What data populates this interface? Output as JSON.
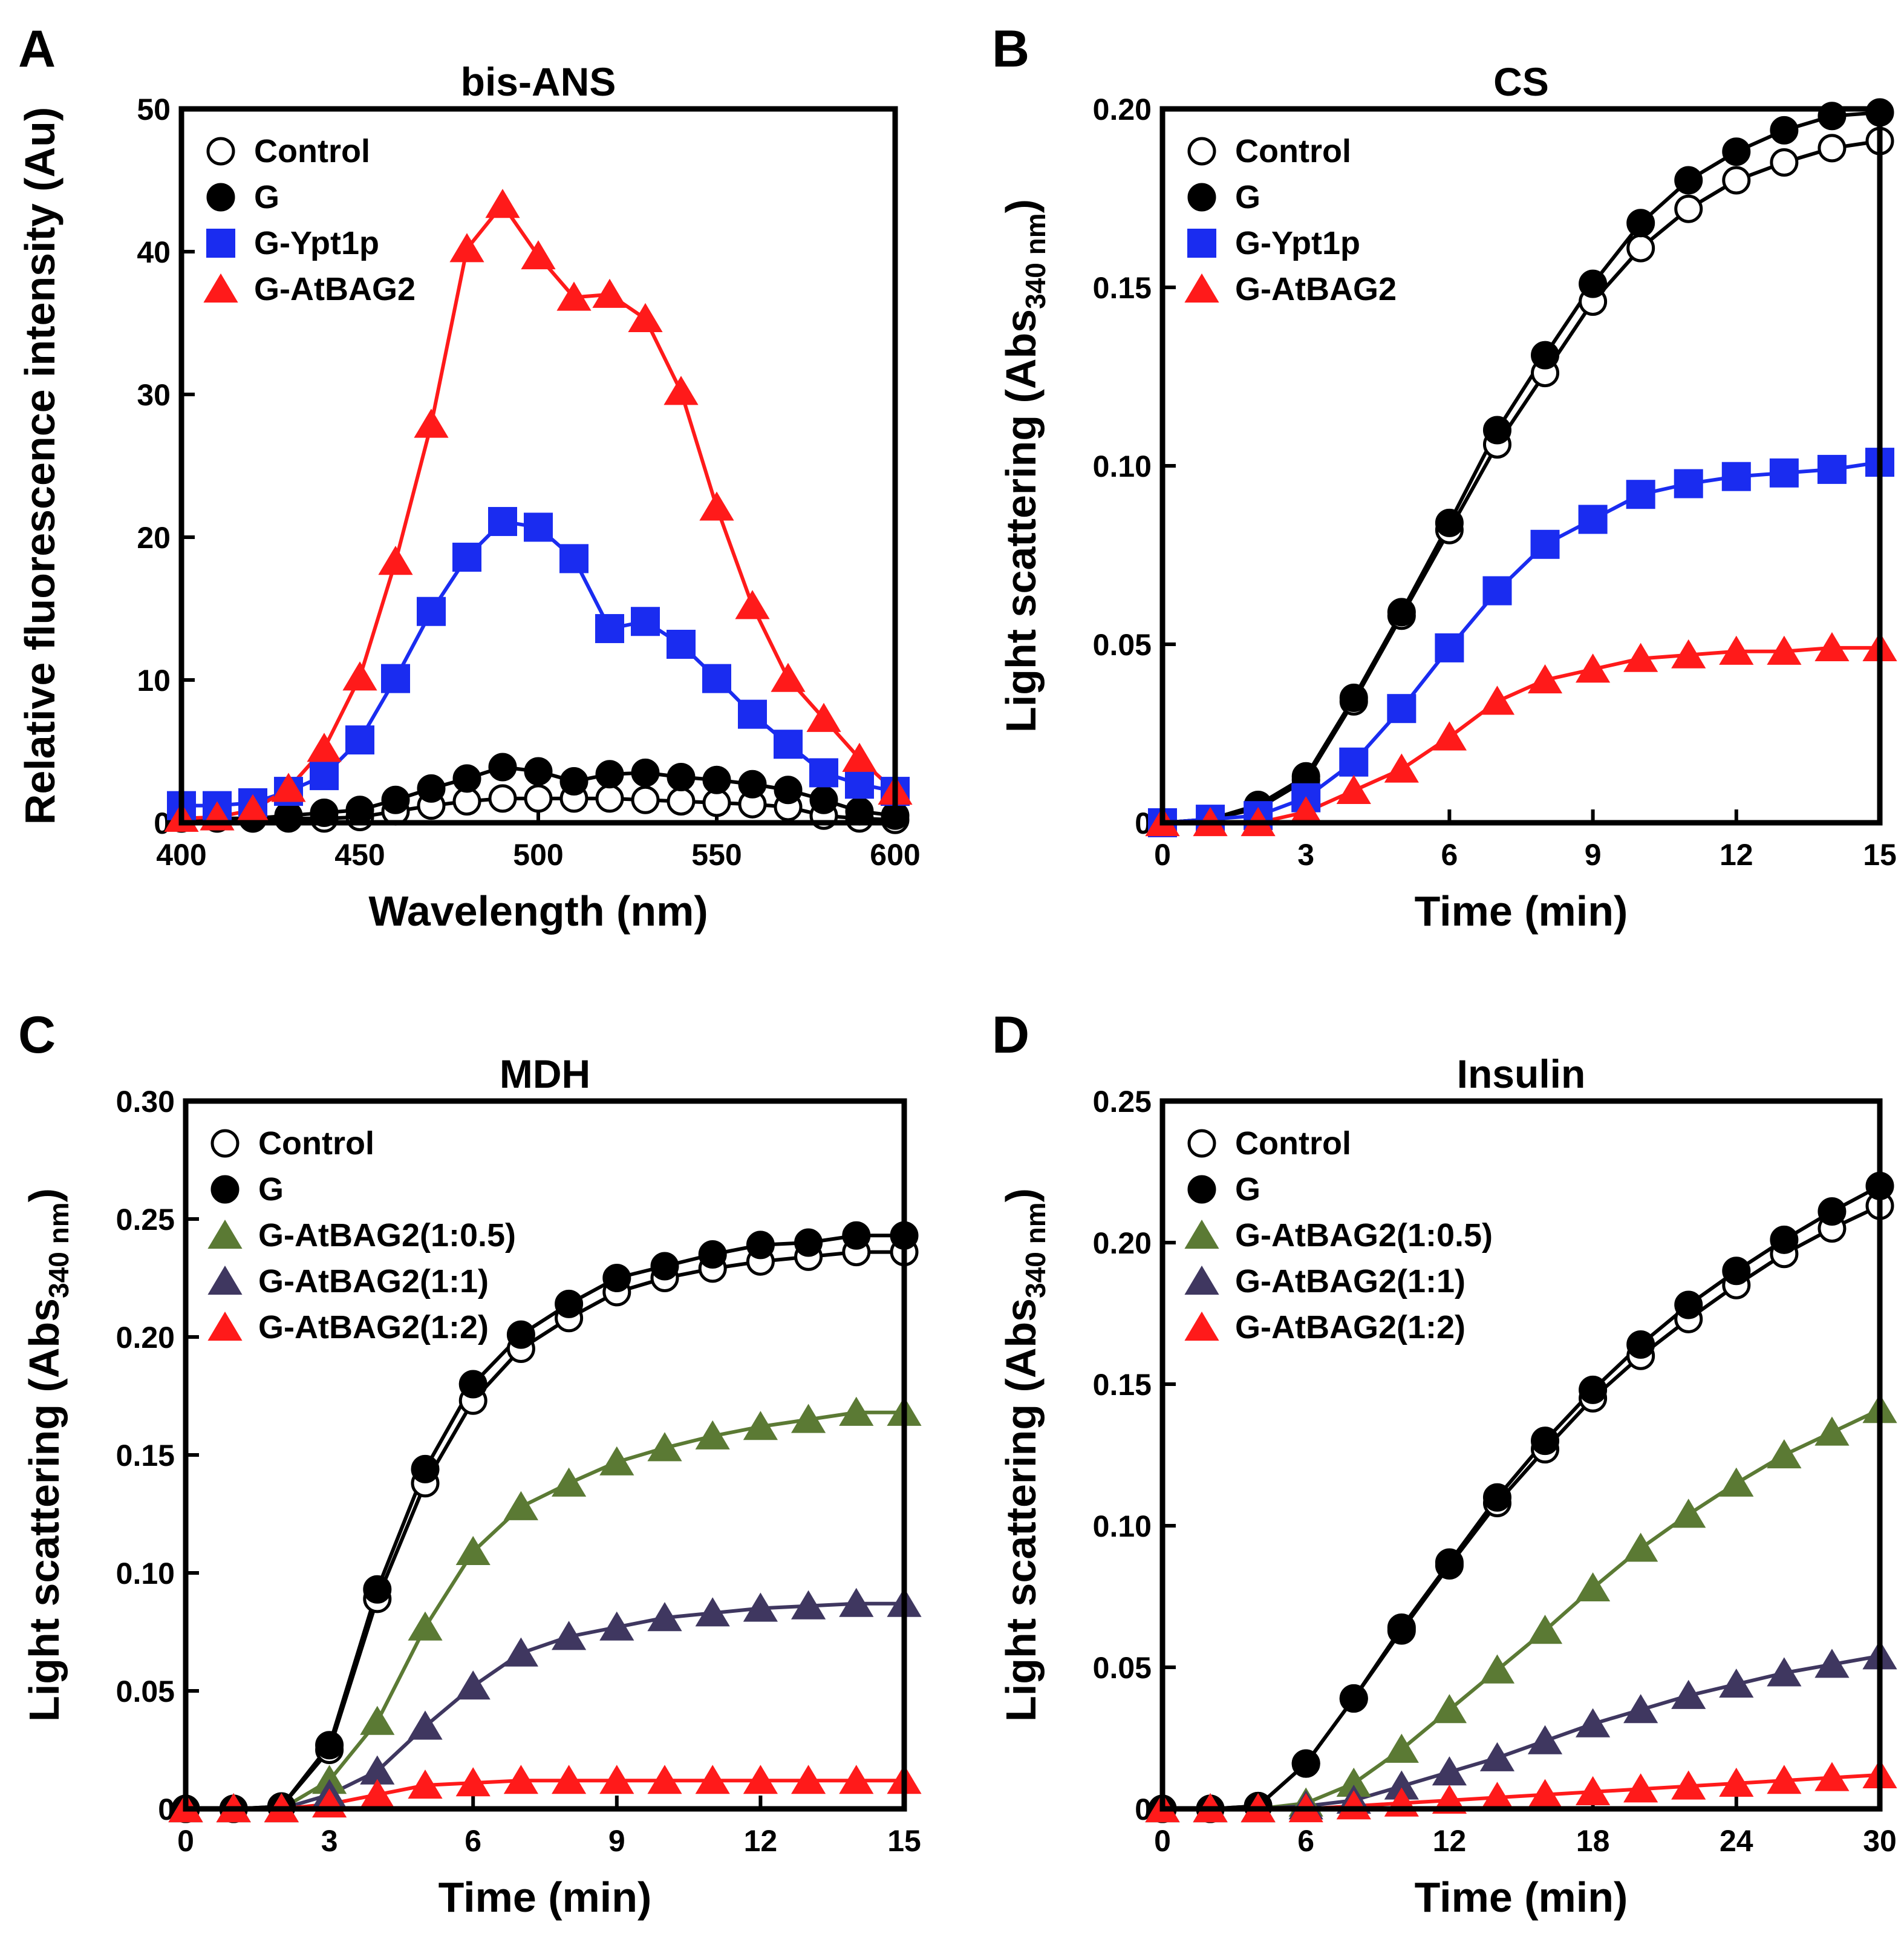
{
  "colors": {
    "control": "#ffffff",
    "g": "#000000",
    "ypt1p": "#1a2cf0",
    "atbag2": "#ff1a1a",
    "ratio_05": "#5b7a34",
    "ratio_1": "#3f3760"
  },
  "chart_data": [
    {
      "type": "line",
      "letter": "A",
      "title": "bis-ANS",
      "xlabel": "Wavelength (nm)",
      "ylabel": "Relative fluorescence intensity (Au)",
      "ylabel_sub": "",
      "ylabel_tail": "",
      "xlim": [
        400,
        600
      ],
      "ylim": [
        0,
        50
      ],
      "xticks": [
        400,
        450,
        500,
        550,
        600
      ],
      "yticks": [
        0,
        10,
        20,
        30,
        40,
        50
      ],
      "ytick_labels": [
        "0",
        "10",
        "20",
        "30",
        "40",
        "50"
      ],
      "legend_position": "top-left",
      "grid": false,
      "series": [
        {
          "name": "Control",
          "marker": "circle-open",
          "color": "#000000",
          "x": [
            400,
            410,
            420,
            430,
            440,
            450,
            460,
            470,
            480,
            490,
            500,
            510,
            520,
            530,
            540,
            550,
            560,
            570,
            580,
            590,
            600
          ],
          "y": [
            0.3,
            0.3,
            0.3,
            0.3,
            0.3,
            0.4,
            0.8,
            1.2,
            1.5,
            1.7,
            1.7,
            1.7,
            1.7,
            1.6,
            1.5,
            1.4,
            1.3,
            1.1,
            0.5,
            0.3,
            0.2
          ]
        },
        {
          "name": "G",
          "marker": "circle",
          "color": "#000000",
          "x": [
            400,
            410,
            420,
            430,
            440,
            450,
            460,
            470,
            480,
            490,
            500,
            510,
            520,
            530,
            540,
            550,
            560,
            570,
            580,
            590,
            600
          ],
          "y": [
            0.3,
            0.3,
            0.3,
            0.5,
            0.7,
            0.9,
            1.6,
            2.4,
            3.1,
            3.9,
            3.6,
            2.9,
            3.4,
            3.5,
            3.2,
            3.0,
            2.7,
            2.3,
            1.6,
            0.8,
            0.5
          ]
        },
        {
          "name": "G-Ypt1p",
          "marker": "square",
          "color": "#1a2cf0",
          "x": [
            400,
            410,
            420,
            430,
            440,
            450,
            460,
            470,
            480,
            490,
            500,
            510,
            520,
            530,
            540,
            550,
            560,
            570,
            580,
            590,
            600
          ],
          "y": [
            1.2,
            1.2,
            1.4,
            2.2,
            3.3,
            5.8,
            10.1,
            14.8,
            18.6,
            21.1,
            20.7,
            18.5,
            13.6,
            14.1,
            12.5,
            10.1,
            7.6,
            5.5,
            3.5,
            2.7,
            2.2
          ]
        },
        {
          "name": "G-AtBAG2",
          "marker": "triangle",
          "color": "#ff1a1a",
          "x": [
            400,
            410,
            420,
            430,
            440,
            450,
            460,
            470,
            480,
            490,
            500,
            510,
            520,
            530,
            540,
            550,
            560,
            570,
            580,
            590,
            600
          ],
          "y": [
            0.3,
            0.4,
            0.9,
            2.4,
            5.2,
            10.2,
            18.3,
            27.9,
            40.2,
            43.3,
            39.7,
            36.8,
            37.0,
            35.3,
            30.2,
            22.1,
            15.2,
            10.1,
            7.3,
            4.5,
            2.2
          ]
        }
      ]
    },
    {
      "type": "line",
      "letter": "B",
      "title": "CS",
      "xlabel": "Time (min)",
      "ylabel": "Light scattering (Abs",
      "ylabel_sub": "340 nm",
      "ylabel_tail": ")",
      "xlim": [
        0,
        15
      ],
      "ylim": [
        0,
        0.2
      ],
      "xticks": [
        0,
        3,
        6,
        9,
        12,
        15
      ],
      "yticks": [
        0,
        0.05,
        0.1,
        0.15,
        0.2
      ],
      "ytick_labels": [
        "0",
        "0.05",
        "0.10",
        "0.15",
        "0.20"
      ],
      "legend_position": "top-left",
      "grid": false,
      "series": [
        {
          "name": "Control",
          "marker": "circle-open",
          "color": "#000000",
          "x": [
            0,
            1,
            2,
            3,
            4,
            5,
            6,
            7,
            8,
            9,
            10,
            11,
            12,
            13,
            14,
            15
          ],
          "y": [
            0,
            0.001,
            0.004,
            0.012,
            0.034,
            0.058,
            0.082,
            0.106,
            0.126,
            0.146,
            0.161,
            0.172,
            0.18,
            0.185,
            0.189,
            0.191
          ]
        },
        {
          "name": "G",
          "marker": "circle",
          "color": "#000000",
          "x": [
            0,
            1,
            2,
            3,
            4,
            5,
            6,
            7,
            8,
            9,
            10,
            11,
            12,
            13,
            14,
            15
          ],
          "y": [
            0,
            0.001,
            0.005,
            0.013,
            0.035,
            0.059,
            0.084,
            0.11,
            0.131,
            0.151,
            0.168,
            0.18,
            0.188,
            0.194,
            0.198,
            0.199
          ]
        },
        {
          "name": "G-Ypt1p",
          "marker": "square",
          "color": "#1a2cf0",
          "x": [
            0,
            1,
            2,
            3,
            4,
            5,
            6,
            7,
            8,
            9,
            10,
            11,
            12,
            13,
            14,
            15
          ],
          "y": [
            0,
            0.001,
            0.002,
            0.007,
            0.017,
            0.032,
            0.049,
            0.065,
            0.078,
            0.085,
            0.092,
            0.095,
            0.097,
            0.098,
            0.099,
            0.101
          ]
        },
        {
          "name": "G-AtBAG2",
          "marker": "triangle",
          "color": "#ff1a1a",
          "x": [
            0,
            1,
            2,
            3,
            4,
            5,
            6,
            7,
            8,
            9,
            10,
            11,
            12,
            13,
            14,
            15
          ],
          "y": [
            0,
            0,
            0,
            0.003,
            0.009,
            0.015,
            0.024,
            0.034,
            0.04,
            0.043,
            0.046,
            0.047,
            0.048,
            0.048,
            0.049,
            0.049
          ]
        }
      ]
    },
    {
      "type": "line",
      "letter": "C",
      "title": "MDH",
      "xlabel": "Time (min)",
      "ylabel": "Light scattering (Abs",
      "ylabel_sub": "340 nm",
      "ylabel_tail": ")",
      "xlim": [
        0,
        15
      ],
      "ylim": [
        0,
        0.3
      ],
      "xticks": [
        0,
        3,
        6,
        9,
        12,
        15
      ],
      "yticks": [
        0,
        0.05,
        0.1,
        0.15,
        0.2,
        0.25,
        0.3
      ],
      "ytick_labels": [
        "0",
        "0.05",
        "0.10",
        "0.15",
        "0.20",
        "0.25",
        "0.30"
      ],
      "legend_position": "top-left",
      "grid": false,
      "series": [
        {
          "name": "Control",
          "marker": "circle-open",
          "color": "#000000",
          "x": [
            0,
            1,
            2,
            3,
            4,
            5,
            6,
            7,
            8,
            9,
            10,
            11,
            12,
            13,
            14,
            15
          ],
          "y": [
            0,
            0,
            0.001,
            0.025,
            0.089,
            0.138,
            0.173,
            0.195,
            0.208,
            0.219,
            0.225,
            0.229,
            0.232,
            0.234,
            0.236,
            0.236
          ]
        },
        {
          "name": "G",
          "marker": "circle",
          "color": "#000000",
          "x": [
            0,
            1,
            2,
            3,
            4,
            5,
            6,
            7,
            8,
            9,
            10,
            11,
            12,
            13,
            14,
            15
          ],
          "y": [
            0,
            0,
            0.001,
            0.027,
            0.093,
            0.144,
            0.18,
            0.201,
            0.214,
            0.225,
            0.23,
            0.235,
            0.239,
            0.24,
            0.243,
            0.243
          ]
        },
        {
          "name": "G-AtBAG2(1:0.5)",
          "marker": "triangle",
          "color": "#5b7a34",
          "x": [
            0,
            1,
            2,
            3,
            4,
            5,
            6,
            7,
            8,
            9,
            10,
            11,
            12,
            13,
            14,
            15
          ],
          "y": [
            0,
            0,
            0,
            0.012,
            0.037,
            0.077,
            0.109,
            0.128,
            0.138,
            0.147,
            0.153,
            0.158,
            0.162,
            0.165,
            0.168,
            0.168
          ]
        },
        {
          "name": "G-AtBAG2(1:1)",
          "marker": "triangle",
          "color": "#3f3760",
          "x": [
            0,
            1,
            2,
            3,
            4,
            5,
            6,
            7,
            8,
            9,
            10,
            11,
            12,
            13,
            14,
            15
          ],
          "y": [
            0,
            0,
            0,
            0.006,
            0.016,
            0.035,
            0.052,
            0.066,
            0.073,
            0.077,
            0.081,
            0.083,
            0.085,
            0.086,
            0.087,
            0.087
          ]
        },
        {
          "name": "G-AtBAG2(1:2)",
          "marker": "triangle",
          "color": "#ff1a1a",
          "x": [
            0,
            1,
            2,
            3,
            4,
            5,
            6,
            7,
            8,
            9,
            10,
            11,
            12,
            13,
            14,
            15
          ],
          "y": [
            0,
            0,
            0,
            0.002,
            0.006,
            0.01,
            0.011,
            0.012,
            0.012,
            0.012,
            0.012,
            0.012,
            0.012,
            0.012,
            0.012,
            0.012
          ]
        }
      ]
    },
    {
      "type": "line",
      "letter": "D",
      "title": "Insulin",
      "xlabel": "Time (min)",
      "ylabel": "Light scattering (Abs",
      "ylabel_sub": "340 nm",
      "ylabel_tail": ")",
      "xlim": [
        0,
        30
      ],
      "ylim": [
        0,
        0.25
      ],
      "xticks": [
        0,
        6,
        12,
        18,
        24,
        30
      ],
      "yticks": [
        0,
        0.05,
        0.1,
        0.15,
        0.2,
        0.25
      ],
      "ytick_labels": [
        "0",
        "0.05",
        "0.10",
        "0.15",
        "0.20",
        "0.25"
      ],
      "legend_position": "top-left",
      "grid": false,
      "series": [
        {
          "name": "Control",
          "marker": "circle-open",
          "color": "#000000",
          "x": [
            0,
            2,
            4,
            6,
            8,
            10,
            12,
            14,
            16,
            18,
            20,
            22,
            24,
            26,
            28,
            30
          ],
          "y": [
            0,
            0,
            0.001,
            0.016,
            0.039,
            0.063,
            0.086,
            0.108,
            0.127,
            0.145,
            0.16,
            0.173,
            0.185,
            0.196,
            0.205,
            0.213
          ]
        },
        {
          "name": "G",
          "marker": "circle",
          "color": "#000000",
          "x": [
            0,
            2,
            4,
            6,
            8,
            10,
            12,
            14,
            16,
            18,
            20,
            22,
            24,
            26,
            28,
            30
          ],
          "y": [
            0,
            0,
            0.001,
            0.016,
            0.039,
            0.064,
            0.087,
            0.11,
            0.13,
            0.148,
            0.164,
            0.178,
            0.19,
            0.201,
            0.211,
            0.22
          ]
        },
        {
          "name": "G-AtBAG2(1:0.5)",
          "marker": "triangle",
          "color": "#5b7a34",
          "x": [
            0,
            2,
            4,
            6,
            8,
            10,
            12,
            14,
            16,
            18,
            20,
            22,
            24,
            26,
            28,
            30
          ],
          "y": [
            0,
            0,
            0,
            0.002,
            0.009,
            0.021,
            0.035,
            0.049,
            0.063,
            0.078,
            0.092,
            0.104,
            0.115,
            0.125,
            0.133,
            0.141
          ]
        },
        {
          "name": "G-AtBAG2(1:1)",
          "marker": "triangle",
          "color": "#3f3760",
          "x": [
            0,
            2,
            4,
            6,
            8,
            10,
            12,
            14,
            16,
            18,
            20,
            22,
            24,
            26,
            28,
            30
          ],
          "y": [
            0,
            0,
            0,
            0.001,
            0.003,
            0.008,
            0.013,
            0.018,
            0.024,
            0.03,
            0.035,
            0.04,
            0.044,
            0.048,
            0.051,
            0.054
          ]
        },
        {
          "name": "G-AtBAG2(1:2)",
          "marker": "triangle",
          "color": "#ff1a1a",
          "x": [
            0,
            2,
            4,
            6,
            8,
            10,
            12,
            14,
            16,
            18,
            20,
            22,
            24,
            26,
            28,
            30
          ],
          "y": [
            0,
            0,
            0,
            0,
            0.001,
            0.002,
            0.003,
            0.004,
            0.005,
            0.006,
            0.007,
            0.008,
            0.009,
            0.01,
            0.011,
            0.012
          ]
        }
      ]
    }
  ]
}
